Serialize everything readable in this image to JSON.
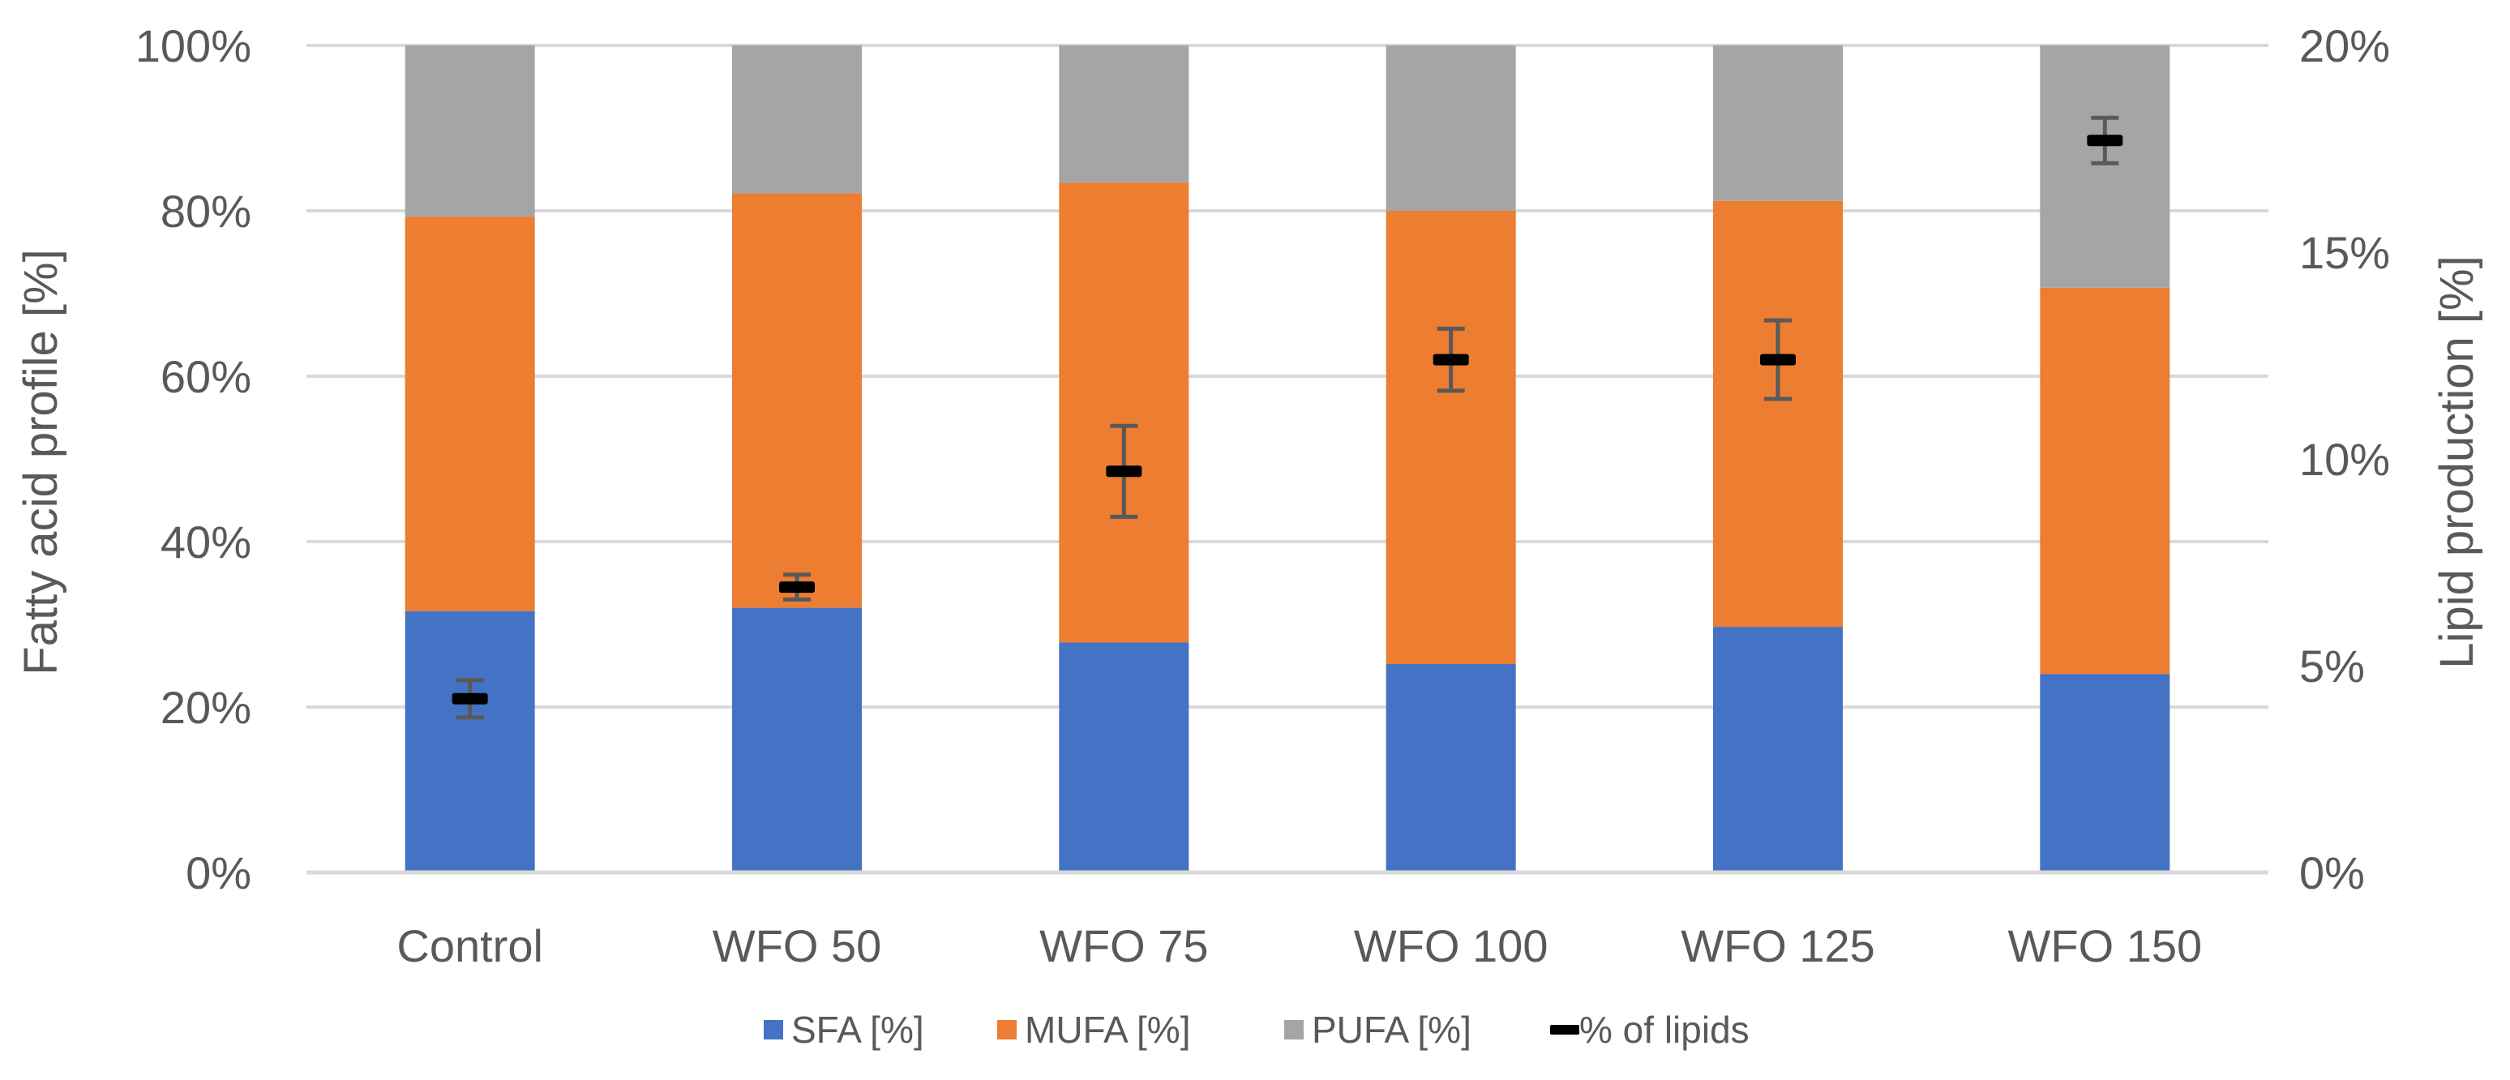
{
  "chart_data": {
    "type": "bar",
    "stacked": true,
    "categories": [
      "Control",
      "WFO 50",
      "WFO 75",
      "WFO 100",
      "WFO 125",
      "WFO 150"
    ],
    "series": [
      {
        "name": "SFA [%]",
        "color": "#4472C4",
        "values": [
          31.6,
          32.0,
          27.8,
          25.2,
          29.7,
          24.0
        ]
      },
      {
        "name": "MUFA [%]",
        "color": "#ED7D31",
        "values": [
          47.7,
          50.1,
          55.6,
          54.8,
          51.5,
          46.7
        ]
      },
      {
        "name": "PUFA [%]",
        "color": "#A5A5A5",
        "values": [
          20.7,
          17.9,
          16.6,
          20.0,
          18.8,
          29.3
        ]
      }
    ],
    "secondary_series": {
      "name": "% of lipids",
      "color": "#000000",
      "values": [
        4.2,
        6.9,
        9.7,
        12.4,
        12.4,
        17.7
      ],
      "error": [
        0.45,
        0.3,
        1.1,
        0.75,
        0.95,
        0.55
      ]
    },
    "ylabel": "Fatty acid profile [%]",
    "ylabel_right": "Lipid production [%]",
    "ylim": [
      0,
      100
    ],
    "ylim_right": [
      0,
      20
    ],
    "y_ticks": [
      "0%",
      "20%",
      "40%",
      "60%",
      "80%",
      "100%"
    ],
    "y_ticks_right": [
      "0%",
      "5%",
      "10%",
      "15%",
      "20%"
    ],
    "grid": true,
    "legend_position": "bottom"
  }
}
